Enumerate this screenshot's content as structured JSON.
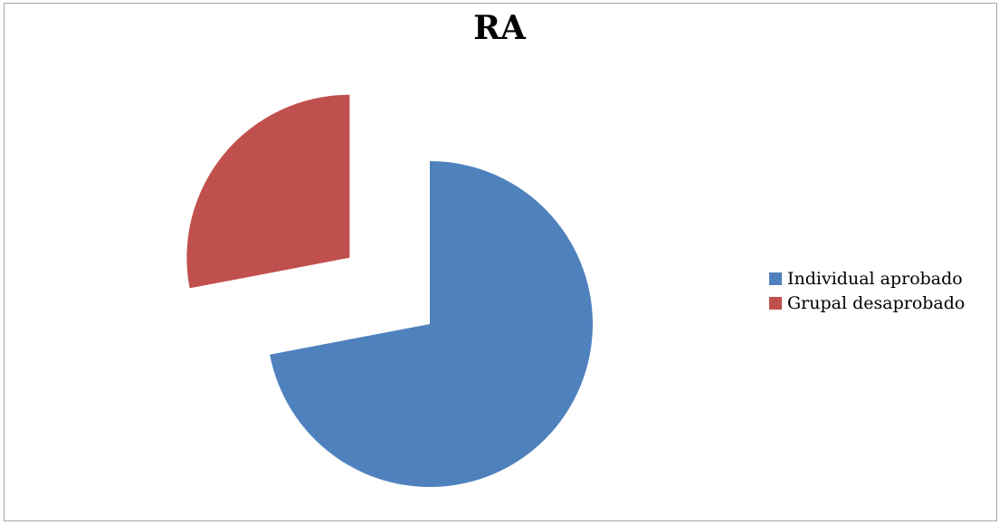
{
  "chart_data": {
    "type": "pie",
    "title": "RA",
    "legend_position": "right",
    "slices": [
      {
        "label": "Individual aprobado",
        "value": 72,
        "color": "#4f81bd"
      },
      {
        "label": "Grupal desaprobado",
        "value": 28,
        "color": "#c0504d"
      }
    ],
    "exploded": true
  }
}
